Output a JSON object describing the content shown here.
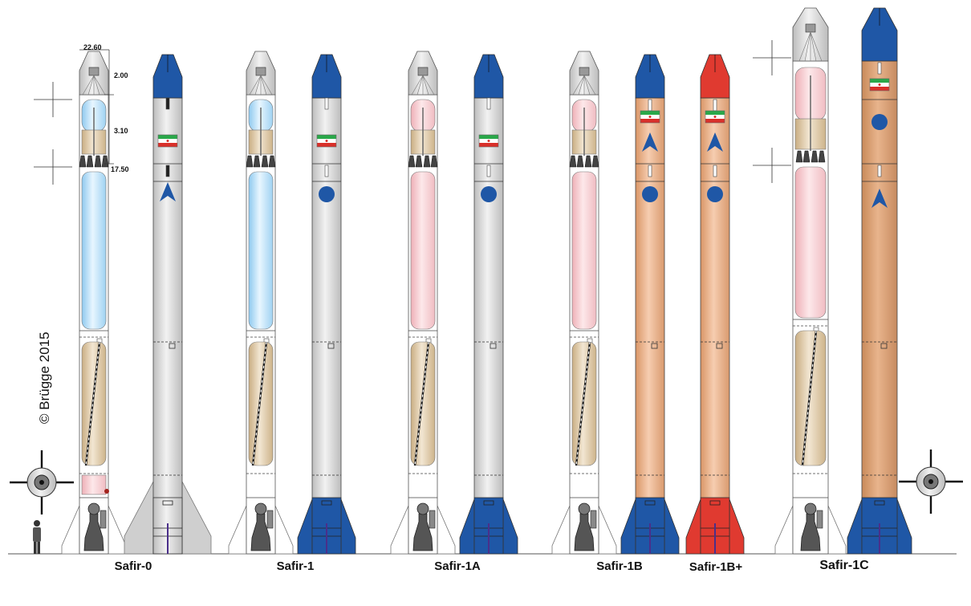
{
  "copyright": "© Brügge 2015",
  "dimensions": {
    "d1": "22.60",
    "d2": "2.00",
    "d3": "3.10",
    "d4": "17.50"
  },
  "colors": {
    "grey": "#d9d9d9",
    "blue_nose": "#1f57a6",
    "red": "#e03a30",
    "orange": "#e8a882",
    "tan": "#d8c3a0",
    "lightblue": "#bfe2f5",
    "pink": "#f7cfd3"
  },
  "rockets": [
    {
      "label": "Safir-0",
      "cutaway": "blue",
      "exterior": "grey",
      "logo": "arrow",
      "flag_top": false
    },
    {
      "label": "Safir-1",
      "cutaway": "blue",
      "exterior": "grey",
      "logo": "circle",
      "flag_top": false
    },
    {
      "label": "Safir-1A",
      "cutaway": "pink",
      "exterior": "grey",
      "logo": "circle",
      "flag_top": false
    },
    {
      "label": "Safir-1B",
      "cutaway": "pink",
      "exterior": "orange",
      "logo": "circle",
      "flag_top": true
    },
    {
      "label": "Safir-1B+",
      "cutaway": null,
      "exterior": "red-orange",
      "logo": "circle",
      "flag_top": true
    },
    {
      "label": "Safir-1C",
      "cutaway": "pink-long",
      "exterior": "orange-long",
      "logo": "arrow",
      "flag_top": true
    }
  ]
}
